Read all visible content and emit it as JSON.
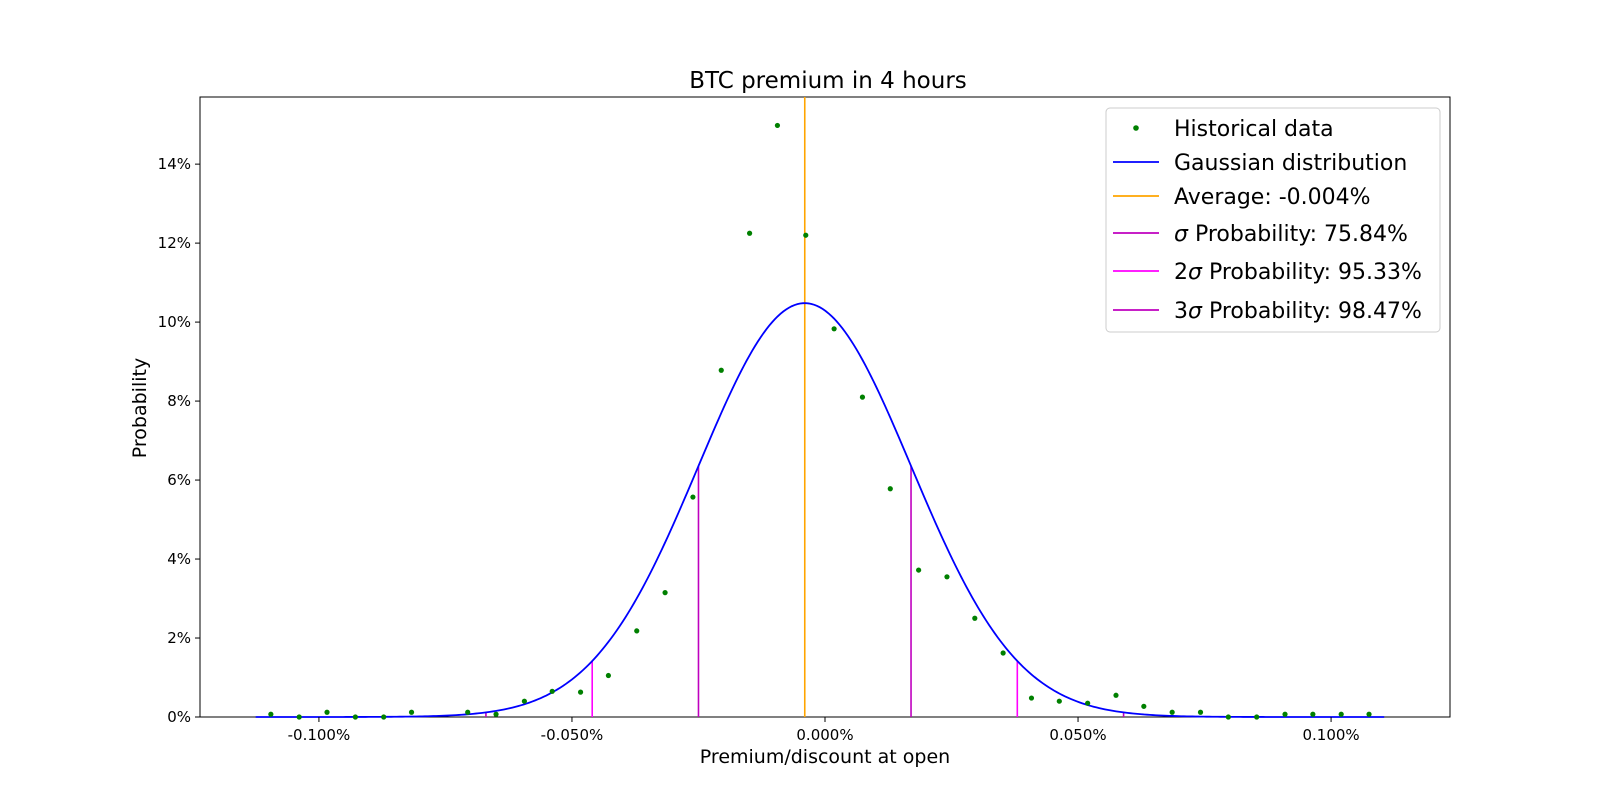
{
  "chart_data": {
    "type": "scatter",
    "title": "BTC premium in 4 hours",
    "xlabel": "Premium/discount at open",
    "ylabel": "Probability",
    "xlim": [
      -0.1235,
      0.1235
    ],
    "ylim": [
      0,
      15.7
    ],
    "x_ticks": [
      -0.1,
      -0.05,
      0,
      0.05,
      0.1
    ],
    "x_tick_labels": [
      "-0.100%",
      "-0.050%",
      "0.000%",
      "0.050%",
      "0.100%"
    ],
    "y_ticks": [
      0,
      2,
      4,
      6,
      8,
      10,
      12,
      14
    ],
    "y_tick_labels": [
      "0%",
      "2%",
      "4%",
      "6%",
      "8%",
      "10%",
      "12%",
      "14%"
    ],
    "grid": false,
    "legend_position": "top-right",
    "colors": {
      "historical": "#008000",
      "gaussian": "#0000ff",
      "average": "#ffa500",
      "sigma1": "#bf00bf",
      "sigma2": "#ff00ff",
      "sigma3": "#bf00bf"
    },
    "series": [
      {
        "name": "Historical data",
        "kind": "points",
        "points": [
          [
            -0.1095,
            0.07
          ],
          [
            -0.1039,
            0.0
          ],
          [
            -0.0984,
            0.12
          ],
          [
            -0.0928,
            0.0
          ],
          [
            -0.0872,
            0.0
          ],
          [
            -0.0817,
            0.12
          ],
          [
            -0.0706,
            0.12
          ],
          [
            -0.065,
            0.07
          ],
          [
            -0.0594,
            0.4
          ],
          [
            -0.0539,
            0.65
          ],
          [
            -0.0483,
            0.63
          ],
          [
            -0.0428,
            1.05
          ],
          [
            -0.0372,
            2.18
          ],
          [
            -0.0316,
            3.15
          ],
          [
            -0.0261,
            5.57
          ],
          [
            -0.0205,
            8.78
          ],
          [
            -0.0149,
            12.25
          ],
          [
            -0.0094,
            14.98
          ],
          [
            -0.0038,
            12.2
          ],
          [
            0.0018,
            9.83
          ],
          [
            0.0074,
            8.1
          ],
          [
            0.0129,
            5.78
          ],
          [
            0.0185,
            3.72
          ],
          [
            0.0241,
            3.55
          ],
          [
            0.0296,
            2.5
          ],
          [
            0.0352,
            1.62
          ],
          [
            0.0408,
            0.48
          ],
          [
            0.0463,
            0.4
          ],
          [
            0.0519,
            0.35
          ],
          [
            0.0575,
            0.55
          ],
          [
            0.063,
            0.27
          ],
          [
            0.0686,
            0.12
          ],
          [
            0.0742,
            0.12
          ],
          [
            0.0797,
            0.0
          ],
          [
            0.0853,
            0.0
          ],
          [
            0.0909,
            0.07
          ],
          [
            0.0964,
            0.07
          ],
          [
            0.102,
            0.07
          ],
          [
            0.1075,
            0.07
          ]
        ]
      },
      {
        "name": "Gaussian distribution",
        "kind": "curve",
        "mean": -0.004,
        "sigma": 0.021,
        "peak": 10.48,
        "x_range": [
          -0.1125,
          0.1105
        ]
      },
      {
        "name": "Average: -0.004%",
        "kind": "vline",
        "x": -0.004
      },
      {
        "name": "σ Probability: 75.84%",
        "kind": "vlines",
        "x": [
          -0.025,
          0.017
        ]
      },
      {
        "name": "2σ Probability: 95.33%",
        "kind": "vlines",
        "x": [
          -0.046,
          0.038
        ]
      },
      {
        "name": "3σ Probability: 98.47%",
        "kind": "vlines",
        "x": [
          -0.067,
          0.059
        ]
      }
    ],
    "legend": [
      {
        "prefix": "",
        "text": "Historical data"
      },
      {
        "prefix": "",
        "text": "Gaussian distribution"
      },
      {
        "prefix": "",
        "text": "Average: -0.004%"
      },
      {
        "prefix": "σ",
        "text": " Probability: 75.84%"
      },
      {
        "prefix": "2σ",
        "text": " Probability: 95.33%"
      },
      {
        "prefix": "3σ",
        "text": " Probability: 98.47%"
      }
    ]
  }
}
